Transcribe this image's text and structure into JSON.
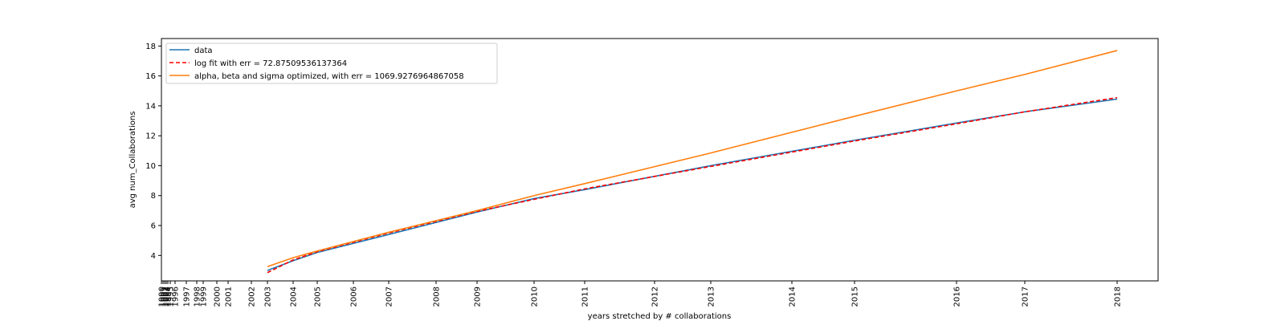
{
  "chart_data": {
    "type": "line",
    "title": "",
    "xlabel": "years stretched by # collaborations",
    "ylabel": "avg num_Collaborations",
    "ylim": [
      2.3,
      18.5
    ],
    "yticks": [
      4,
      6,
      8,
      10,
      12,
      14,
      16,
      18
    ],
    "xticks": [
      "1990",
      "1991",
      "1992",
      "1993",
      "1994",
      "1995",
      "1996",
      "1997",
      "1998",
      "1999",
      "2000",
      "2001",
      "2002",
      "2003",
      "2004",
      "2005",
      "2006",
      "2007",
      "2008",
      "2009",
      "2010",
      "2011",
      "2012",
      "2013",
      "2014",
      "2015",
      "2016",
      "2017",
      "2018"
    ],
    "grid": false,
    "legend_position": "top-left",
    "series": [
      {
        "name": "data",
        "color": "#1f77b4",
        "style": "solid",
        "points": [
          [
            "2003",
            3.0
          ],
          [
            "2004",
            3.65
          ],
          [
            "2005",
            4.2
          ],
          [
            "2007",
            5.4
          ],
          [
            "2009",
            6.9
          ],
          [
            "2010",
            7.8
          ],
          [
            "2011",
            8.4
          ],
          [
            "2013",
            10.0
          ],
          [
            "2015",
            11.7
          ],
          [
            "2016",
            12.85
          ],
          [
            "2017",
            13.6
          ],
          [
            "2018",
            14.45
          ]
        ]
      },
      {
        "name": "log fit with err = 72.87509536137364",
        "color": "#ff0000",
        "style": "dashed",
        "points": [
          [
            "2003",
            2.85
          ],
          [
            "2004",
            3.7
          ],
          [
            "2005",
            4.25
          ],
          [
            "2007",
            5.5
          ],
          [
            "2009",
            6.95
          ],
          [
            "2010",
            7.75
          ],
          [
            "2011",
            8.45
          ],
          [
            "2013",
            9.95
          ],
          [
            "2015",
            11.65
          ],
          [
            "2016",
            12.8
          ],
          [
            "2017",
            13.6
          ],
          [
            "2018",
            14.55
          ]
        ]
      },
      {
        "name": "alpha, beta and sigma optimized, with err = 1069.9276964867058",
        "color": "#ff7f0e",
        "style": "solid",
        "points": [
          [
            "2003",
            3.25
          ],
          [
            "2004",
            3.85
          ],
          [
            "2005",
            4.3
          ],
          [
            "2007",
            5.55
          ],
          [
            "2009",
            7.0
          ],
          [
            "2010",
            8.0
          ],
          [
            "2011",
            8.8
          ],
          [
            "2013",
            10.85
          ],
          [
            "2015",
            13.3
          ],
          [
            "2016",
            15.0
          ],
          [
            "2017",
            16.1
          ],
          [
            "2018",
            17.7
          ]
        ]
      }
    ]
  }
}
